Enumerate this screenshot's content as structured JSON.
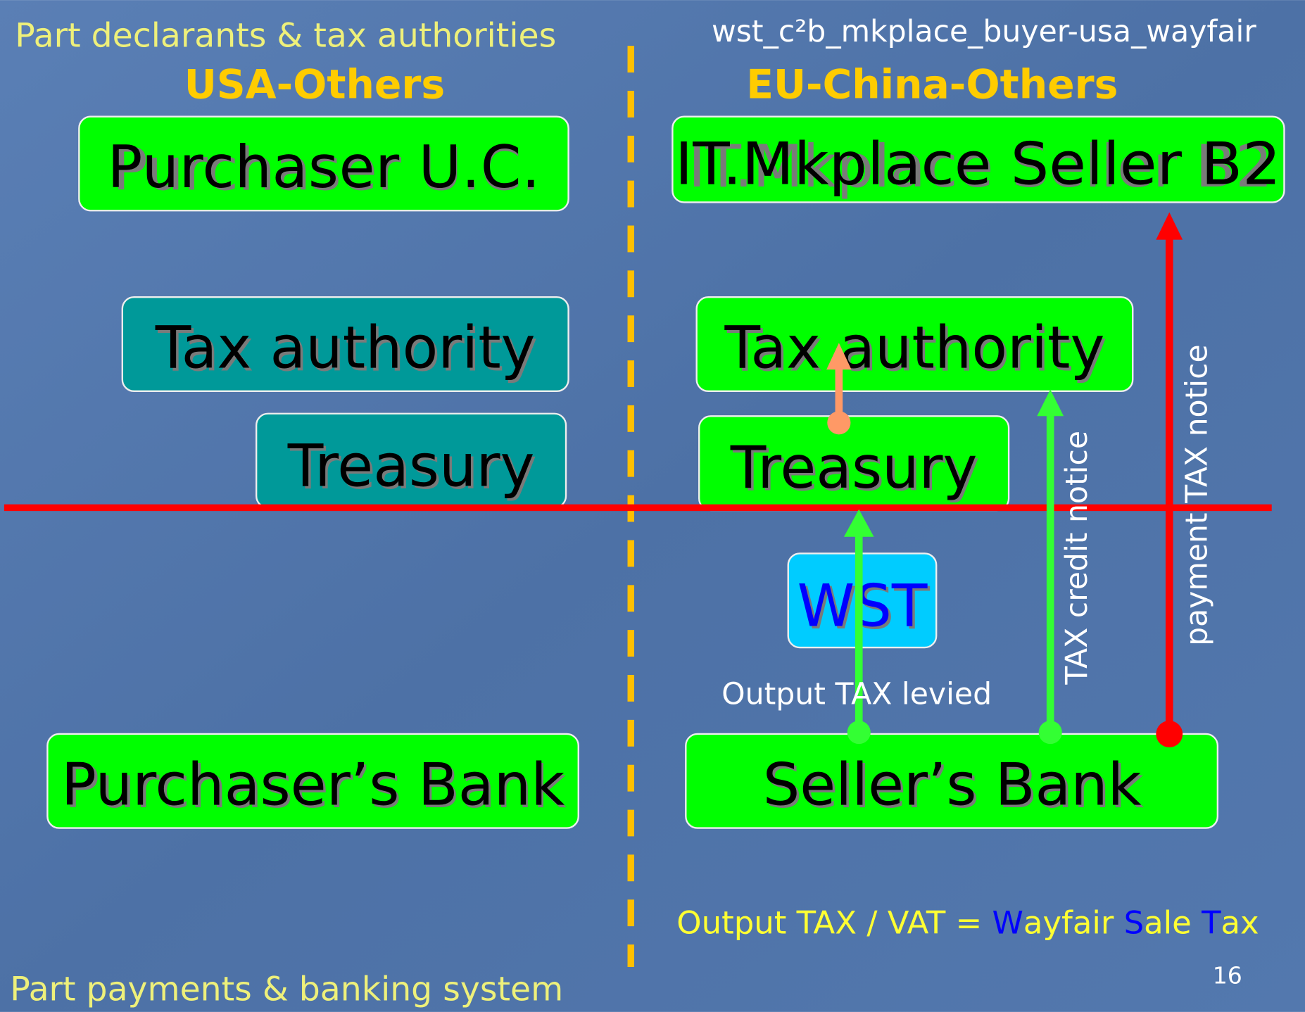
{
  "header": {
    "top_left": "Part declarants & tax authorities",
    "top_right": "wst_c²b_mkplace_buyer-usa_wayfair",
    "left_region": "USA-Others",
    "right_region": "EU-China-Others"
  },
  "nodes": [
    {
      "label": "Purchaser U.C."
    },
    {
      "label": "IT.Mkplace Seller B2"
    },
    {
      "label": "Tax authority"
    },
    {
      "label": "Tax authority"
    },
    {
      "label": "Treasury"
    },
    {
      "label": "Treasury"
    },
    {
      "label": "WST"
    },
    {
      "label": "Purchaser’s Bank"
    },
    {
      "label": "Seller’s Bank"
    }
  ],
  "edges": [
    {
      "label": "Output TAX levied"
    },
    {
      "label": "TAX credit notice"
    },
    {
      "label": "payment TAX notice"
    }
  ],
  "formula": [
    "Output TAX / VAT = ",
    "W",
    "ayfair ",
    "S",
    "ale ",
    "T",
    "ax"
  ],
  "footer": {
    "bottom_left": "Part payments & banking system",
    "page_number": "16"
  }
}
